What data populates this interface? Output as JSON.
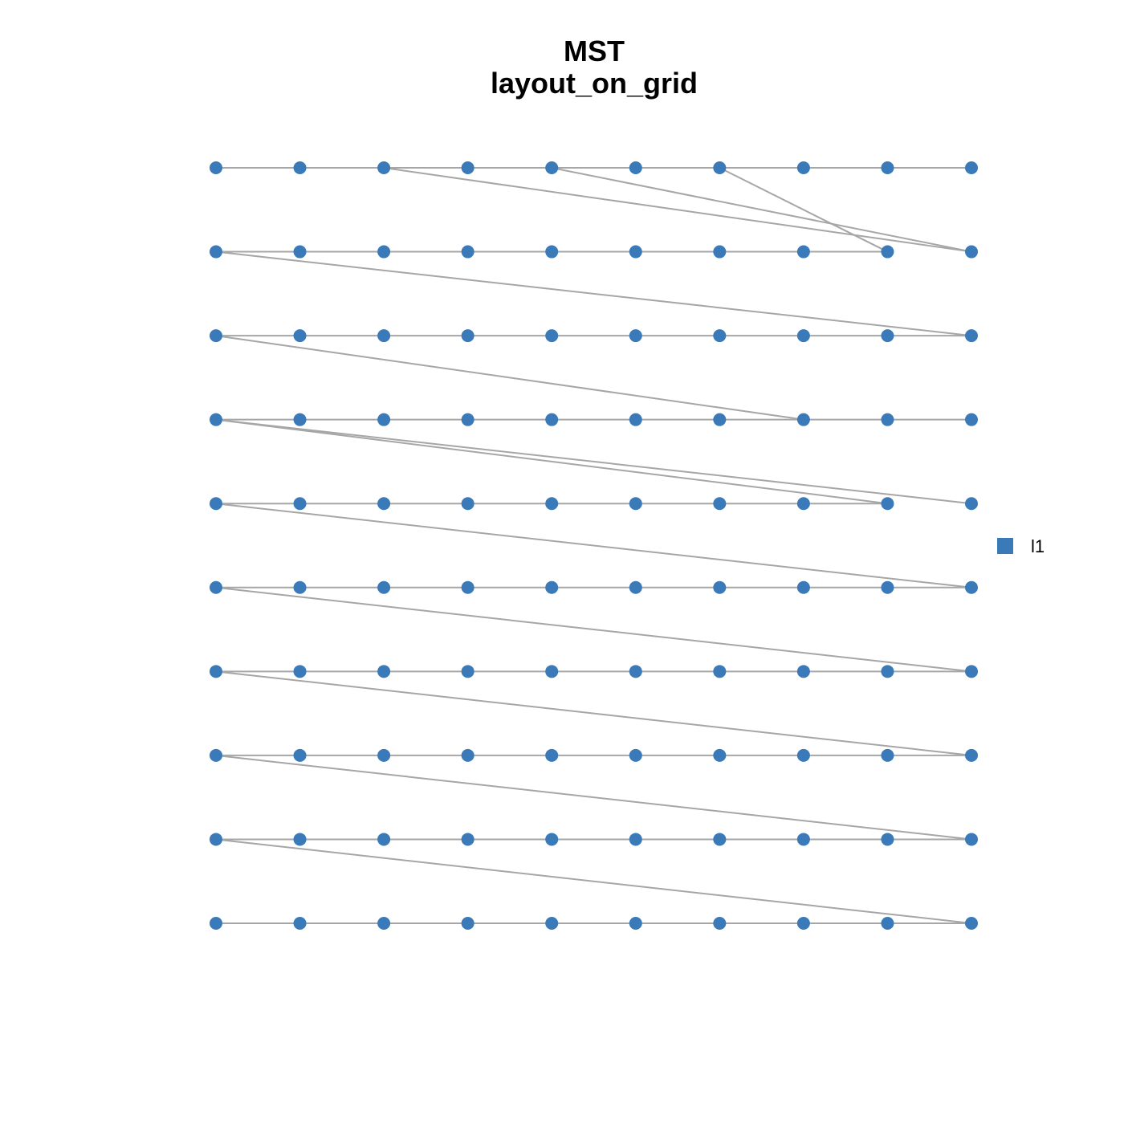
{
  "title": "MST",
  "subtitle": "layout_on_grid",
  "legend": {
    "items": [
      {
        "label": "l1"
      }
    ]
  }
}
